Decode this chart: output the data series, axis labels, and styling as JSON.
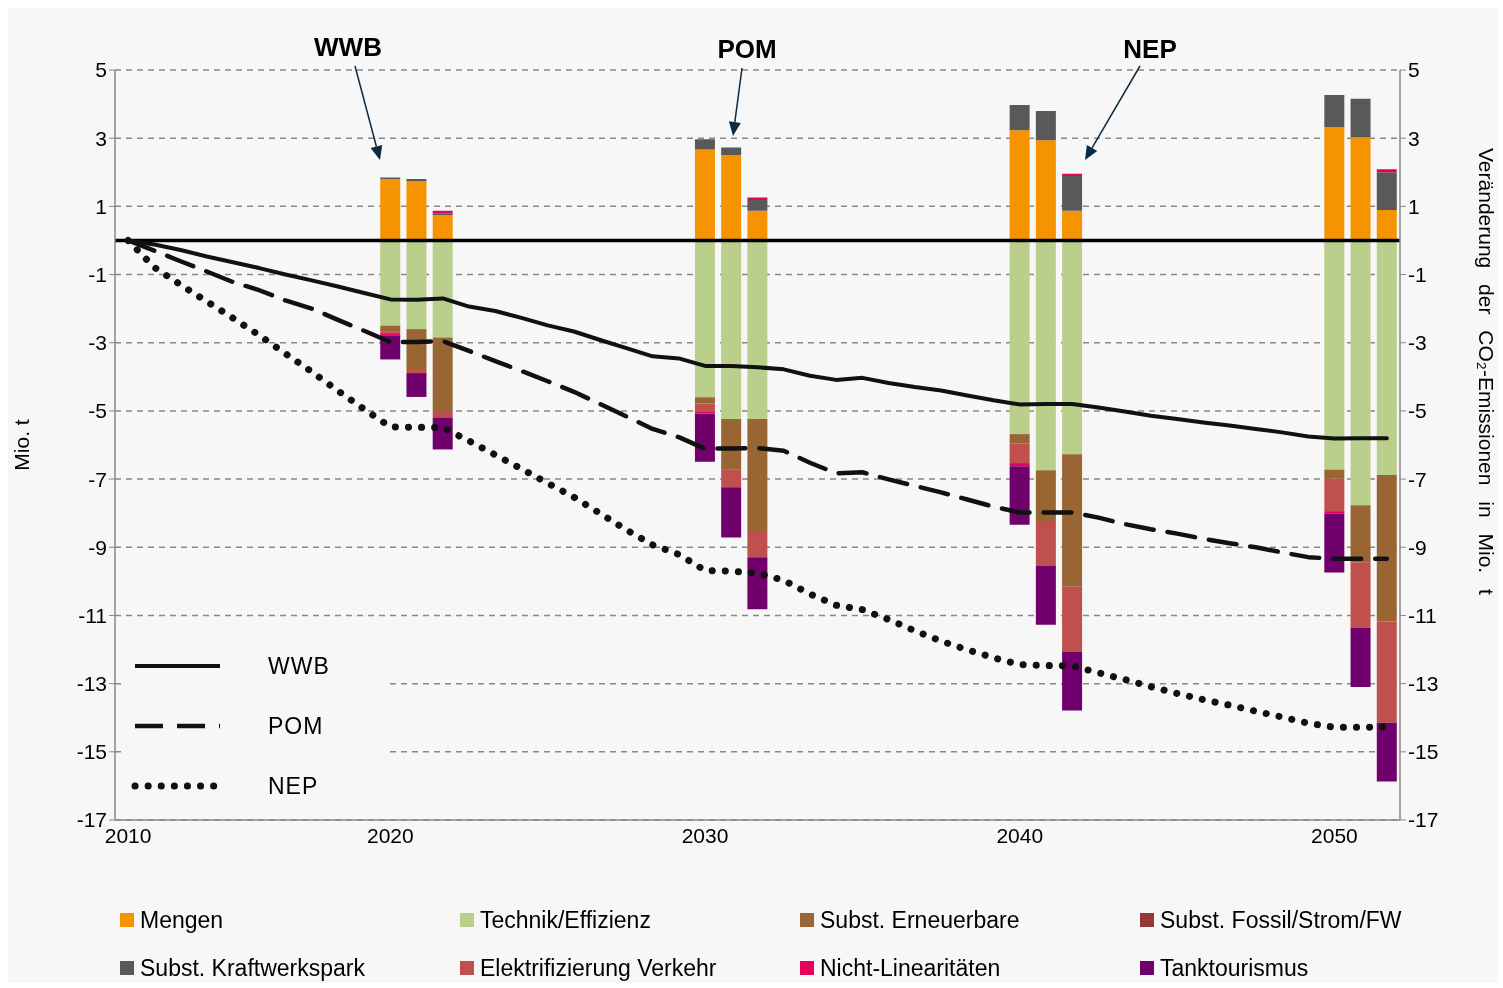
{
  "chart_data": {
    "type": "bar",
    "stacked": true,
    "ylabel": "Mio. t",
    "y2label": "Veränderung der CO₂-Emissionen in Mio. t",
    "categories": [
      "2010",
      null,
      null,
      null,
      null,
      null,
      null,
      null,
      null,
      null,
      "2020",
      null,
      null,
      null,
      null,
      null,
      null,
      null,
      null,
      null,
      null,
      null,
      "2030",
      null,
      null,
      null,
      null,
      null,
      null,
      null,
      null,
      null,
      null,
      null,
      "2040",
      null,
      null,
      null,
      null,
      null,
      null,
      null,
      null,
      null,
      null,
      null,
      "2050",
      null,
      null
    ],
    "ylim": [
      -17,
      5
    ],
    "yticks": [
      5,
      3,
      1,
      -1,
      -3,
      -5,
      -7,
      -9,
      -11,
      -13,
      -15,
      -17
    ],
    "y2lim": [
      -17,
      5
    ],
    "y2ticks": [
      5,
      3,
      1,
      -1,
      -3,
      -5,
      -7,
      -9,
      -11,
      -13,
      -15,
      -17
    ],
    "grid": "y",
    "legend": "bottom",
    "ref_lines": [
      {
        "axis": "y",
        "value": 0,
        "color": "#000000"
      }
    ],
    "annotations": [
      "WWB",
      "POM",
      "NEP"
    ],
    "series": [
      {
        "name": "Mengen",
        "color": "#f59400",
        "values": [
          null,
          null,
          null,
          null,
          null,
          null,
          null,
          null,
          null,
          null,
          1.8,
          1.74,
          0.75,
          null,
          null,
          null,
          null,
          null,
          null,
          null,
          null,
          null,
          2.67,
          2.51,
          0.87,
          null,
          null,
          null,
          null,
          null,
          null,
          null,
          null,
          null,
          3.23,
          2.94,
          0.87,
          null,
          null,
          null,
          null,
          null,
          null,
          null,
          null,
          null,
          3.33,
          3.03,
          0.89
        ]
      },
      {
        "name": "Technik/Effizienz",
        "color": "#b9cf8b",
        "values": [
          null,
          null,
          null,
          null,
          null,
          null,
          null,
          null,
          null,
          null,
          -2.5,
          -2.6,
          -2.85,
          null,
          null,
          null,
          null,
          null,
          null,
          null,
          null,
          null,
          -4.6,
          -5.24,
          -5.24,
          null,
          null,
          null,
          null,
          null,
          null,
          null,
          null,
          null,
          -5.68,
          -6.74,
          -6.27,
          null,
          null,
          null,
          null,
          null,
          null,
          null,
          null,
          null,
          -6.72,
          -7.77,
          -6.88
        ]
      },
      {
        "name": "Subst. Erneuerbare",
        "color": "#996633",
        "values": [
          null,
          null,
          null,
          null,
          null,
          null,
          null,
          null,
          null,
          null,
          -0.16,
          -1.17,
          -2.15,
          null,
          null,
          null,
          null,
          null,
          null,
          null,
          null,
          null,
          -0.18,
          -1.47,
          -3.28,
          null,
          null,
          null,
          null,
          null,
          null,
          null,
          null,
          null,
          -0.28,
          -1.52,
          -3.89,
          null,
          null,
          null,
          null,
          null,
          null,
          null,
          null,
          null,
          -0.27,
          -1.67,
          -4.3
        ]
      },
      {
        "name": "Subst. Fossil/Strom/FW",
        "color": "#953735",
        "values": [
          null,
          null,
          null,
          null,
          null,
          null,
          null,
          null,
          null,
          null,
          0,
          0,
          0,
          null,
          null,
          null,
          null,
          null,
          null,
          null,
          null,
          null,
          0,
          0,
          0,
          null,
          null,
          null,
          null,
          null,
          null,
          null,
          null,
          null,
          0,
          0,
          0,
          null,
          null,
          null,
          null,
          null,
          null,
          null,
          null,
          null,
          0,
          0,
          0
        ]
      },
      {
        "name": "Subst. Kraftwerkspark",
        "color": "#595959",
        "values": [
          null,
          null,
          null,
          null,
          null,
          null,
          null,
          null,
          null,
          null,
          0.05,
          0.06,
          0.05,
          null,
          null,
          null,
          null,
          null,
          null,
          null,
          null,
          null,
          0.3,
          0.22,
          0.32,
          null,
          null,
          null,
          null,
          null,
          null,
          null,
          null,
          null,
          0.74,
          0.86,
          1.02,
          null,
          null,
          null,
          null,
          null,
          null,
          null,
          null,
          null,
          0.94,
          1.13,
          1.11
        ]
      },
      {
        "name": "Elektrifizierung Verkehr",
        "color": "#c0504d",
        "values": [
          null,
          null,
          null,
          null,
          null,
          null,
          null,
          null,
          null,
          null,
          -0.06,
          -0.12,
          -0.19,
          null,
          null,
          null,
          null,
          null,
          null,
          null,
          null,
          null,
          -0.25,
          -0.53,
          -0.77,
          null,
          null,
          null,
          null,
          null,
          null,
          null,
          null,
          null,
          -0.57,
          -1.29,
          -1.91,
          null,
          null,
          null,
          null,
          null,
          null,
          null,
          null,
          null,
          -0.95,
          -1.93,
          -2.97
        ]
      },
      {
        "name": "Nicht-Linearitäten",
        "color": "#e8005c",
        "values": [
          null,
          null,
          null,
          null,
          null,
          null,
          null,
          null,
          null,
          null,
          -0.08,
          0,
          0.07,
          null,
          null,
          null,
          null,
          null,
          null,
          null,
          null,
          null,
          -0.05,
          0,
          0.07,
          null,
          null,
          null,
          null,
          null,
          null,
          null,
          null,
          null,
          -0.09,
          0,
          0.07,
          null,
          null,
          null,
          null,
          null,
          null,
          null,
          null,
          null,
          -0.07,
          0,
          0.09
        ]
      },
      {
        "name": "Tanktourismus",
        "color": "#70006c",
        "values": [
          null,
          null,
          null,
          null,
          null,
          null,
          null,
          null,
          null,
          null,
          -0.69,
          -0.7,
          -0.94,
          null,
          null,
          null,
          null,
          null,
          null,
          null,
          null,
          null,
          -1.41,
          -1.47,
          -1.53,
          null,
          null,
          null,
          null,
          null,
          null,
          null,
          null,
          null,
          -1.72,
          -1.72,
          -1.72,
          null,
          null,
          null,
          null,
          null,
          null,
          null,
          null,
          null,
          -1.73,
          -1.73,
          -1.72
        ]
      },
      {
        "name": "WWB",
        "type": "line",
        "line_style": "solid",
        "color": "#111111",
        "values": [
          0,
          -0.12,
          -0.28,
          -0.47,
          -0.64,
          -0.81,
          -1.0,
          -1.17,
          -1.35,
          -1.54,
          -1.73,
          -1.74,
          -1.7,
          -1.94,
          -2.07,
          -2.27,
          -2.49,
          -2.67,
          -2.92,
          -3.16,
          -3.4,
          -3.46,
          -3.68,
          -3.68,
          -3.72,
          -3.78,
          -3.97,
          -4.09,
          -4.03,
          -4.18,
          -4.3,
          -4.4,
          -4.55,
          -4.69,
          -4.81,
          -4.8,
          -4.8,
          -4.9,
          -5.02,
          -5.14,
          -5.24,
          -5.34,
          -5.43,
          -5.53,
          -5.63,
          -5.75,
          -5.81,
          -5.8,
          -5.8
        ]
      },
      {
        "name": "POM",
        "type": "line",
        "line_style": "dashed",
        "color": "#111111",
        "values": [
          0,
          -0.3,
          -0.61,
          -0.91,
          -1.22,
          -1.46,
          -1.76,
          -2.0,
          -2.33,
          -2.65,
          -2.98,
          -2.98,
          -2.95,
          -3.24,
          -3.54,
          -3.83,
          -4.13,
          -4.44,
          -4.8,
          -5.16,
          -5.53,
          -5.77,
          -6.11,
          -6.1,
          -6.09,
          -6.17,
          -6.52,
          -6.83,
          -6.8,
          -7.01,
          -7.2,
          -7.39,
          -7.6,
          -7.81,
          -7.98,
          -7.98,
          -7.98,
          -8.13,
          -8.32,
          -8.47,
          -8.6,
          -8.75,
          -8.88,
          -9.0,
          -9.15,
          -9.29,
          -9.34,
          -9.34,
          -9.34
        ]
      },
      {
        "name": "NEP",
        "type": "line",
        "line_style": "dotted",
        "color": "#111111",
        "values": [
          0,
          -0.79,
          -1.3,
          -1.79,
          -2.28,
          -2.78,
          -3.32,
          -3.85,
          -4.41,
          -4.95,
          -5.47,
          -5.48,
          -5.49,
          -5.88,
          -6.29,
          -6.7,
          -7.12,
          -7.53,
          -8.01,
          -8.49,
          -8.93,
          -9.21,
          -9.68,
          -9.7,
          -9.76,
          -9.97,
          -10.37,
          -10.7,
          -10.83,
          -11.12,
          -11.45,
          -11.75,
          -12.01,
          -12.24,
          -12.44,
          -12.47,
          -12.48,
          -12.68,
          -12.88,
          -13.09,
          -13.29,
          -13.47,
          -13.63,
          -13.81,
          -13.98,
          -14.16,
          -14.28,
          -14.28,
          -14.27
        ]
      }
    ]
  }
}
